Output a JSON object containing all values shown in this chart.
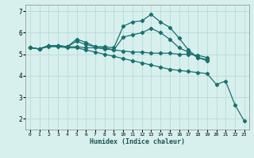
{
  "xlabel": "Humidex (Indice chaleur)",
  "ylabel": "",
  "xlim": [
    -0.5,
    23.5
  ],
  "ylim": [
    1.5,
    7.3
  ],
  "xticks": [
    0,
    1,
    2,
    3,
    4,
    5,
    6,
    7,
    8,
    9,
    10,
    11,
    12,
    13,
    14,
    15,
    16,
    17,
    18,
    19,
    20,
    21,
    22,
    23
  ],
  "yticks": [
    2,
    3,
    4,
    5,
    6,
    7
  ],
  "bg_color": "#d7f0ed",
  "line_color": "#1a7070",
  "grid_color": "#b8dbd7",
  "lines": [
    {
      "x": [
        0,
        1,
        2,
        3,
        4,
        5,
        6,
        7,
        8,
        9,
        10,
        11,
        12,
        13,
        14,
        15,
        16,
        17,
        18,
        19
      ],
      "y": [
        5.3,
        5.25,
        5.4,
        5.4,
        5.35,
        5.7,
        5.55,
        5.35,
        5.35,
        5.3,
        6.3,
        6.5,
        6.55,
        6.85,
        6.5,
        6.25,
        5.75,
        5.2,
        4.85,
        4.75
      ]
    },
    {
      "x": [
        0,
        1,
        2,
        3,
        4,
        5,
        6,
        7,
        8,
        9,
        10,
        11,
        12,
        13,
        14,
        15,
        16,
        17,
        18,
        19
      ],
      "y": [
        5.3,
        5.25,
        5.4,
        5.4,
        5.35,
        5.6,
        5.45,
        5.35,
        5.3,
        5.2,
        5.8,
        5.9,
        6.0,
        6.2,
        6.0,
        5.7,
        5.3,
        5.1,
        4.85,
        4.7
      ]
    },
    {
      "x": [
        0,
        1,
        2,
        3,
        4,
        5,
        6,
        7,
        8,
        9,
        10,
        11,
        12,
        13,
        14,
        15,
        16,
        17,
        18,
        19
      ],
      "y": [
        5.3,
        5.25,
        5.4,
        5.4,
        5.35,
        5.35,
        5.3,
        5.3,
        5.25,
        5.2,
        5.15,
        5.1,
        5.1,
        5.05,
        5.05,
        5.05,
        5.0,
        5.0,
        4.95,
        4.85
      ]
    },
    {
      "x": [
        0,
        1,
        2,
        3,
        4,
        5,
        6,
        7,
        8,
        9,
        10,
        11,
        12,
        13,
        14,
        15,
        16,
        17,
        18,
        19,
        20,
        21,
        22,
        23
      ],
      "y": [
        5.3,
        5.25,
        5.35,
        5.35,
        5.3,
        5.3,
        5.2,
        5.1,
        5.0,
        4.9,
        4.8,
        4.7,
        4.6,
        4.5,
        4.4,
        4.3,
        4.25,
        4.2,
        4.15,
        4.1,
        3.6,
        3.75,
        2.65,
        1.9
      ]
    }
  ]
}
